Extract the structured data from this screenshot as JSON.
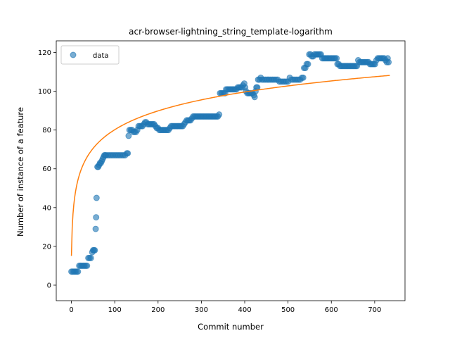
{
  "chart_data": {
    "type": "scatter",
    "title": "acr-browser-lightning_string_template-logarithm",
    "xlabel": "Commit number",
    "ylabel": "Number of instance of a feature",
    "xlim": [
      -35,
      770
    ],
    "ylim": [
      -8,
      126
    ],
    "xticks": [
      0,
      100,
      200,
      300,
      400,
      500,
      600,
      700
    ],
    "yticks": [
      0,
      20,
      40,
      60,
      80,
      100,
      120
    ],
    "grid": false,
    "legend": {
      "position": "top-left",
      "entries": [
        "data"
      ]
    },
    "colors": {
      "data": "#1f77b4",
      "fit": "#ff7f0e"
    },
    "series": [
      {
        "name": "data",
        "kind": "scatter",
        "points": [
          [
            0,
            7
          ],
          [
            3,
            7
          ],
          [
            6,
            7
          ],
          [
            9,
            7
          ],
          [
            12,
            7
          ],
          [
            15,
            7
          ],
          [
            18,
            10
          ],
          [
            21,
            10
          ],
          [
            24,
            10
          ],
          [
            27,
            10
          ],
          [
            30,
            10
          ],
          [
            33,
            10
          ],
          [
            36,
            10
          ],
          [
            39,
            14
          ],
          [
            42,
            14
          ],
          [
            45,
            14
          ],
          [
            48,
            17
          ],
          [
            50,
            18
          ],
          [
            52,
            18
          ],
          [
            54,
            18
          ],
          [
            56,
            29
          ],
          [
            57,
            35
          ],
          [
            58,
            45
          ],
          [
            60,
            61
          ],
          [
            62,
            61
          ],
          [
            64,
            62
          ],
          [
            66,
            63
          ],
          [
            68,
            63
          ],
          [
            70,
            64
          ],
          [
            72,
            65
          ],
          [
            74,
            66
          ],
          [
            76,
            67
          ],
          [
            78,
            67
          ],
          [
            80,
            67
          ],
          [
            84,
            67
          ],
          [
            88,
            67
          ],
          [
            92,
            67
          ],
          [
            96,
            67
          ],
          [
            100,
            67
          ],
          [
            104,
            67
          ],
          [
            108,
            67
          ],
          [
            112,
            67
          ],
          [
            116,
            67
          ],
          [
            120,
            67
          ],
          [
            124,
            67
          ],
          [
            128,
            68
          ],
          [
            130,
            68
          ],
          [
            132,
            77
          ],
          [
            134,
            80
          ],
          [
            137,
            80
          ],
          [
            140,
            80
          ],
          [
            143,
            79
          ],
          [
            146,
            79
          ],
          [
            149,
            79
          ],
          [
            152,
            80
          ],
          [
            155,
            82
          ],
          [
            158,
            82
          ],
          [
            161,
            82
          ],
          [
            164,
            82
          ],
          [
            167,
            83
          ],
          [
            170,
            84
          ],
          [
            173,
            84
          ],
          [
            176,
            83
          ],
          [
            179,
            83
          ],
          [
            182,
            83
          ],
          [
            185,
            83
          ],
          [
            188,
            83
          ],
          [
            191,
            83
          ],
          [
            194,
            82
          ],
          [
            197,
            81
          ],
          [
            200,
            81
          ],
          [
            203,
            80
          ],
          [
            206,
            80
          ],
          [
            209,
            80
          ],
          [
            212,
            80
          ],
          [
            215,
            80
          ],
          [
            218,
            80
          ],
          [
            221,
            80
          ],
          [
            224,
            80
          ],
          [
            227,
            81
          ],
          [
            230,
            82
          ],
          [
            233,
            82
          ],
          [
            236,
            82
          ],
          [
            239,
            82
          ],
          [
            242,
            82
          ],
          [
            245,
            82
          ],
          [
            248,
            82
          ],
          [
            251,
            82
          ],
          [
            254,
            82
          ],
          [
            257,
            82
          ],
          [
            260,
            83
          ],
          [
            263,
            84
          ],
          [
            266,
            85
          ],
          [
            269,
            85
          ],
          [
            272,
            85
          ],
          [
            275,
            85
          ],
          [
            278,
            86
          ],
          [
            281,
            87
          ],
          [
            284,
            87
          ],
          [
            287,
            87
          ],
          [
            290,
            87
          ],
          [
            293,
            87
          ],
          [
            296,
            87
          ],
          [
            299,
            87
          ],
          [
            302,
            87
          ],
          [
            305,
            87
          ],
          [
            308,
            87
          ],
          [
            311,
            87
          ],
          [
            314,
            87
          ],
          [
            317,
            87
          ],
          [
            320,
            87
          ],
          [
            323,
            87
          ],
          [
            326,
            87
          ],
          [
            329,
            87
          ],
          [
            332,
            87
          ],
          [
            335,
            87
          ],
          [
            338,
            87
          ],
          [
            341,
            88
          ],
          [
            343,
            99
          ],
          [
            346,
            99
          ],
          [
            349,
            99
          ],
          [
            352,
            99
          ],
          [
            355,
            99
          ],
          [
            357,
            101
          ],
          [
            360,
            101
          ],
          [
            363,
            101
          ],
          [
            366,
            101
          ],
          [
            369,
            101
          ],
          [
            372,
            101
          ],
          [
            375,
            101
          ],
          [
            378,
            101
          ],
          [
            381,
            101
          ],
          [
            384,
            102
          ],
          [
            387,
            102
          ],
          [
            390,
            102
          ],
          [
            393,
            102
          ],
          [
            396,
            103
          ],
          [
            399,
            104
          ],
          [
            401,
            102
          ],
          [
            403,
            100
          ],
          [
            406,
            99
          ],
          [
            409,
            99
          ],
          [
            412,
            99
          ],
          [
            415,
            99
          ],
          [
            418,
            99
          ],
          [
            421,
            98
          ],
          [
            423,
            97
          ],
          [
            425,
            100
          ],
          [
            427,
            102
          ],
          [
            429,
            102
          ],
          [
            431,
            106
          ],
          [
            434,
            106
          ],
          [
            437,
            107
          ],
          [
            440,
            106
          ],
          [
            444,
            106
          ],
          [
            448,
            106
          ],
          [
            452,
            106
          ],
          [
            456,
            106
          ],
          [
            460,
            106
          ],
          [
            464,
            106
          ],
          [
            468,
            106
          ],
          [
            472,
            106
          ],
          [
            476,
            106
          ],
          [
            480,
            105
          ],
          [
            484,
            105
          ],
          [
            488,
            105
          ],
          [
            492,
            105
          ],
          [
            496,
            105
          ],
          [
            500,
            105
          ],
          [
            504,
            107
          ],
          [
            508,
            106
          ],
          [
            512,
            106
          ],
          [
            516,
            106
          ],
          [
            520,
            106
          ],
          [
            524,
            106
          ],
          [
            528,
            106
          ],
          [
            532,
            107
          ],
          [
            535,
            107
          ],
          [
            537,
            112
          ],
          [
            540,
            112
          ],
          [
            543,
            114
          ],
          [
            546,
            114
          ],
          [
            549,
            119
          ],
          [
            552,
            119
          ],
          [
            555,
            118
          ],
          [
            558,
            118
          ],
          [
            561,
            119
          ],
          [
            564,
            119
          ],
          [
            567,
            119
          ],
          [
            570,
            119
          ],
          [
            573,
            119
          ],
          [
            576,
            119
          ],
          [
            579,
            117
          ],
          [
            582,
            117
          ],
          [
            585,
            117
          ],
          [
            588,
            117
          ],
          [
            591,
            117
          ],
          [
            594,
            117
          ],
          [
            597,
            117
          ],
          [
            600,
            117
          ],
          [
            603,
            117
          ],
          [
            606,
            117
          ],
          [
            609,
            117
          ],
          [
            612,
            117
          ],
          [
            614,
            114
          ],
          [
            617,
            114
          ],
          [
            620,
            113
          ],
          [
            623,
            113
          ],
          [
            626,
            113
          ],
          [
            629,
            113
          ],
          [
            632,
            113
          ],
          [
            635,
            113
          ],
          [
            638,
            113
          ],
          [
            641,
            113
          ],
          [
            644,
            113
          ],
          [
            647,
            113
          ],
          [
            650,
            113
          ],
          [
            653,
            113
          ],
          [
            656,
            113
          ],
          [
            659,
            113
          ],
          [
            662,
            116
          ],
          [
            665,
            115
          ],
          [
            668,
            115
          ],
          [
            671,
            115
          ],
          [
            674,
            115
          ],
          [
            677,
            115
          ],
          [
            680,
            115
          ],
          [
            683,
            115
          ],
          [
            686,
            115
          ],
          [
            689,
            114
          ],
          [
            692,
            114
          ],
          [
            695,
            114
          ],
          [
            698,
            114
          ],
          [
            701,
            114
          ],
          [
            704,
            116
          ],
          [
            707,
            117
          ],
          [
            710,
            117
          ],
          [
            713,
            117
          ],
          [
            716,
            117
          ],
          [
            719,
            117
          ],
          [
            722,
            117
          ],
          [
            725,
            116
          ],
          [
            728,
            115
          ],
          [
            730,
            117
          ],
          [
            732,
            115
          ]
        ]
      },
      {
        "name": "",
        "kind": "line",
        "function": "14.1*ln(x+1)+15.1",
        "x_range": [
          0,
          735
        ]
      }
    ]
  }
}
